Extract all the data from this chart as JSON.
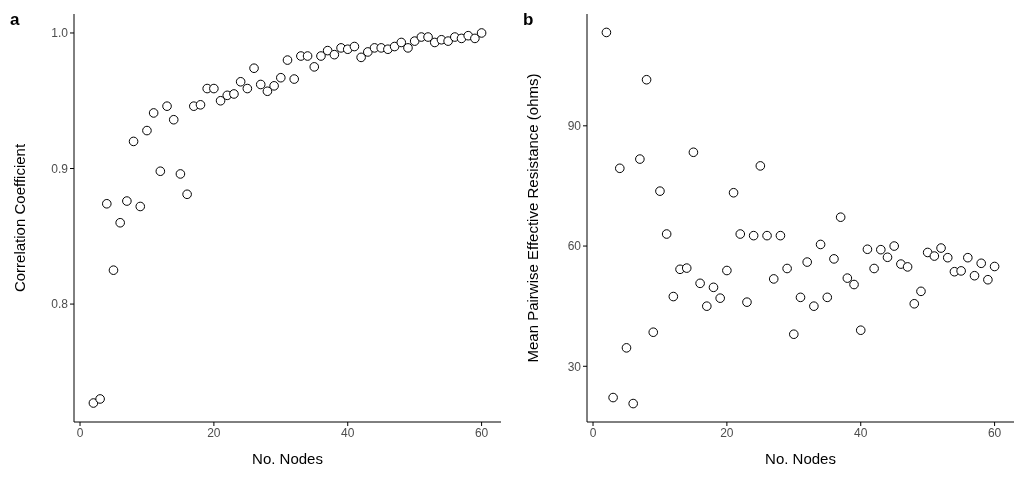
{
  "chart_data": [
    {
      "type": "scatter",
      "title": "a",
      "xlabel": "No. Nodes",
      "ylabel": "Correlation Coefficient",
      "color": "#000000",
      "marker": "circle",
      "grid": false,
      "xlim": [
        -0.9,
        62.9
      ],
      "ylim": [
        0.713,
        1.014
      ],
      "xticks": [
        0,
        20,
        40,
        60
      ],
      "yticks": [
        0.8,
        0.9,
        {
          "value": 1,
          "label": "1.0"
        }
      ],
      "x": [
        2,
        3,
        4,
        5,
        6,
        7,
        8,
        9,
        10,
        11,
        12,
        13,
        14,
        15,
        16,
        17,
        18,
        19,
        20,
        21,
        22,
        23,
        24,
        25,
        26,
        27,
        28,
        29,
        30,
        31,
        32,
        33,
        34,
        35,
        36,
        37,
        38,
        39,
        40,
        41,
        42,
        43,
        44,
        45,
        46,
        47,
        48,
        49,
        50,
        51,
        52,
        53,
        54,
        55,
        56,
        57,
        58,
        59,
        60
      ],
      "values": [
        0.727,
        0.73,
        0.874,
        0.825,
        0.86,
        0.876,
        0.92,
        0.872,
        0.928,
        0.941,
        0.898,
        0.946,
        0.936,
        0.896,
        0.881,
        0.946,
        0.947,
        0.959,
        0.959,
        0.95,
        0.954,
        0.955,
        0.964,
        0.959,
        0.974,
        0.962,
        0.957,
        0.961,
        0.967,
        0.98,
        0.966,
        0.983,
        0.983,
        0.975,
        0.983,
        0.987,
        0.984,
        0.989,
        0.988,
        0.99,
        0.982,
        0.986,
        0.989,
        0.989,
        0.988,
        0.99,
        0.993,
        0.989,
        0.994,
        0.997,
        0.997,
        0.993,
        0.995,
        0.994,
        0.997,
        0.996,
        0.998,
        0.996,
        1.0
      ]
    },
    {
      "type": "scatter",
      "title": "b",
      "xlabel": "No. Nodes",
      "ylabel": "Mean Pairwise Effective Resistance (ohms)",
      "color": "#000000",
      "marker": "circle",
      "grid": false,
      "xlim": [
        -0.9,
        62.9
      ],
      "ylim": [
        16.1,
        117.9
      ],
      "xticks": [
        0,
        20,
        40,
        60
      ],
      "yticks": [
        30,
        60,
        90
      ],
      "x": [
        2,
        3,
        4,
        5,
        6,
        7,
        8,
        9,
        10,
        11,
        12,
        13,
        14,
        15,
        16,
        17,
        18,
        19,
        20,
        21,
        22,
        23,
        24,
        25,
        26,
        27,
        28,
        29,
        30,
        31,
        32,
        33,
        34,
        35,
        36,
        37,
        38,
        39,
        40,
        41,
        42,
        43,
        44,
        45,
        46,
        47,
        48,
        49,
        50,
        51,
        52,
        53,
        54,
        55,
        56,
        57,
        58,
        59,
        60
      ],
      "values": [
        113.3,
        22.2,
        79.4,
        34.6,
        20.7,
        81.7,
        101.5,
        38.5,
        73.7,
        63.0,
        47.4,
        54.2,
        54.5,
        83.4,
        50.7,
        45.0,
        49.7,
        47.0,
        53.9,
        73.3,
        63.0,
        46.0,
        62.6,
        80.0,
        62.6,
        51.8,
        62.6,
        54.4,
        38.0,
        47.2,
        56.0,
        45.0,
        60.4,
        47.2,
        56.8,
        67.2,
        52.0,
        50.4,
        39.0,
        59.2,
        54.4,
        59.1,
        57.2,
        60.0,
        55.5,
        54.8,
        45.6,
        48.7,
        58.4,
        57.5,
        59.5,
        57.1,
        53.6,
        53.8,
        57.1,
        52.6,
        55.7,
        51.6,
        54.9
      ]
    }
  ]
}
